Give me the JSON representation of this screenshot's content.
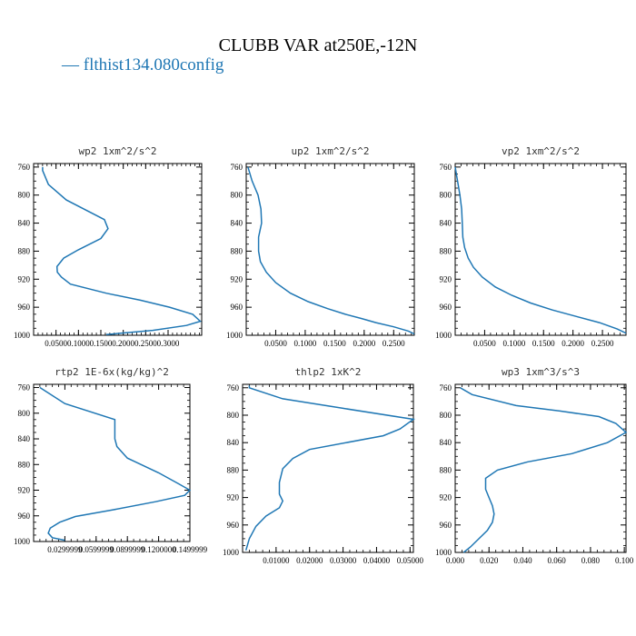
{
  "title": "CLUBB VAR at250E,-12N",
  "legend": {
    "text": "— flthist134.080config",
    "color": "#1f77b4"
  },
  "line_color": "#1f77b4",
  "chart_data": [
    {
      "type": "line",
      "title": "wp2  1xm^2/s^2",
      "ylim": [
        1000,
        755
      ],
      "yticks": [
        "760",
        "800",
        "840",
        "880",
        "920",
        "960",
        "1000"
      ],
      "xlim": [
        0.0,
        0.375
      ],
      "xticks": [
        "0.0500",
        "0.1000",
        "0.1500",
        "0.2000",
        "0.2500",
        "0.3000"
      ],
      "x": [
        0.02,
        0.02,
        0.033,
        0.073,
        0.158,
        0.166,
        0.15,
        0.1,
        0.067,
        0.052,
        0.053,
        0.062,
        0.082,
        0.162,
        0.238,
        0.303,
        0.355,
        0.372,
        0.341,
        0.266,
        0.162
      ],
      "y": [
        760,
        765,
        785,
        807,
        835,
        848,
        862,
        878,
        890,
        902,
        910,
        917,
        927,
        940,
        950,
        960,
        970,
        980,
        986,
        993,
        999
      ]
    },
    {
      "type": "line",
      "title": "up2  1xm^2/s^2",
      "ylim": [
        1000,
        755
      ],
      "yticks": [
        "760",
        "800",
        "840",
        "880",
        "920",
        "960",
        "1000"
      ],
      "xlim": [
        0.0,
        0.285
      ],
      "xticks": [
        "0.0500",
        "0.1000",
        "0.1500",
        "0.2000",
        "0.2500"
      ],
      "x": [
        0.003,
        0.01,
        0.02,
        0.025,
        0.026,
        0.021,
        0.021,
        0.024,
        0.034,
        0.05,
        0.075,
        0.105,
        0.138,
        0.168,
        0.195,
        0.22,
        0.25,
        0.275,
        0.285
      ],
      "y": [
        760,
        780,
        800,
        820,
        840,
        860,
        880,
        895,
        910,
        925,
        940,
        952,
        962,
        970,
        976,
        982,
        988,
        994,
        998
      ]
    },
    {
      "type": "line",
      "title": "vp2  1xm^2/s^2",
      "ylim": [
        1000,
        755
      ],
      "yticks": [
        "760",
        "800",
        "840",
        "880",
        "920",
        "960",
        "1000"
      ],
      "xlim": [
        0.0,
        0.29
      ],
      "xticks": [
        "0.0500",
        "0.1000",
        "0.1500",
        "0.2000",
        "0.2500"
      ],
      "x": [
        0.0,
        0.004,
        0.008,
        0.011,
        0.012,
        0.013,
        0.016,
        0.022,
        0.031,
        0.046,
        0.068,
        0.096,
        0.128,
        0.165,
        0.205,
        0.245,
        0.275,
        0.29
      ],
      "y": [
        760,
        780,
        800,
        820,
        840,
        860,
        875,
        890,
        903,
        917,
        931,
        943,
        954,
        964,
        973,
        982,
        991,
        997
      ]
    },
    {
      "type": "line",
      "title": "rtp2  1E-6x(kg/kg)^2",
      "ylim": [
        1000,
        755
      ],
      "yticks": [
        "760",
        "800",
        "840",
        "880",
        "920",
        "960",
        "1000"
      ],
      "xlim": [
        0.0,
        0.15
      ],
      "xticks": [
        "0.0299999",
        "0.0599999",
        "0.0899999",
        "0.1200000",
        "0.1499999"
      ],
      "x": [
        0.006,
        0.03,
        0.078,
        0.078,
        0.08,
        0.09,
        0.12,
        0.139,
        0.15,
        0.145,
        0.117,
        0.075,
        0.04,
        0.025,
        0.016,
        0.014,
        0.018,
        0.03
      ],
      "y": [
        760,
        785,
        810,
        840,
        852,
        870,
        893,
        910,
        920,
        928,
        938,
        951,
        961,
        970,
        979,
        987,
        994,
        998
      ]
    },
    {
      "type": "line",
      "title": "thlp2  1xK^2",
      "ylim": [
        1000,
        755
      ],
      "yticks": [
        "760",
        "800",
        "840",
        "880",
        "920",
        "960",
        "1000"
      ],
      "xlim": [
        0.0,
        0.051
      ],
      "xticks": [
        "0.01000",
        "0.02000",
        "0.03000",
        "0.04000",
        "0.05000"
      ],
      "x": [
        0.002,
        0.002,
        0.012,
        0.03,
        0.051,
        0.047,
        0.042,
        0.02,
        0.015,
        0.012,
        0.011,
        0.011,
        0.012,
        0.011,
        0.007,
        0.004,
        0.002,
        0.001
      ],
      "y": [
        757,
        760,
        776,
        790,
        806,
        820,
        830,
        850,
        863,
        878,
        898,
        915,
        925,
        935,
        947,
        962,
        980,
        997
      ]
    },
    {
      "type": "line",
      "title": "wp3  1xm^3/s^3",
      "ylim": [
        1000,
        755
      ],
      "yticks": [
        "760",
        "800",
        "840",
        "880",
        "920",
        "960",
        "1000"
      ],
      "xlim": [
        0.0,
        0.101
      ],
      "xticks": [
        "0.000",
        "0.020",
        "0.040",
        "0.060",
        "0.080",
        "0.100"
      ],
      "x": [
        0.003,
        0.01,
        0.036,
        0.062,
        0.085,
        0.095,
        0.101,
        0.09,
        0.069,
        0.043,
        0.025,
        0.018,
        0.018,
        0.02,
        0.022,
        0.023,
        0.022,
        0.019,
        0.014,
        0.009,
        0.005
      ],
      "y": [
        760,
        770,
        786,
        794,
        802,
        812,
        825,
        840,
        856,
        868,
        880,
        892,
        908,
        920,
        932,
        944,
        956,
        968,
        980,
        992,
        1000
      ]
    }
  ]
}
